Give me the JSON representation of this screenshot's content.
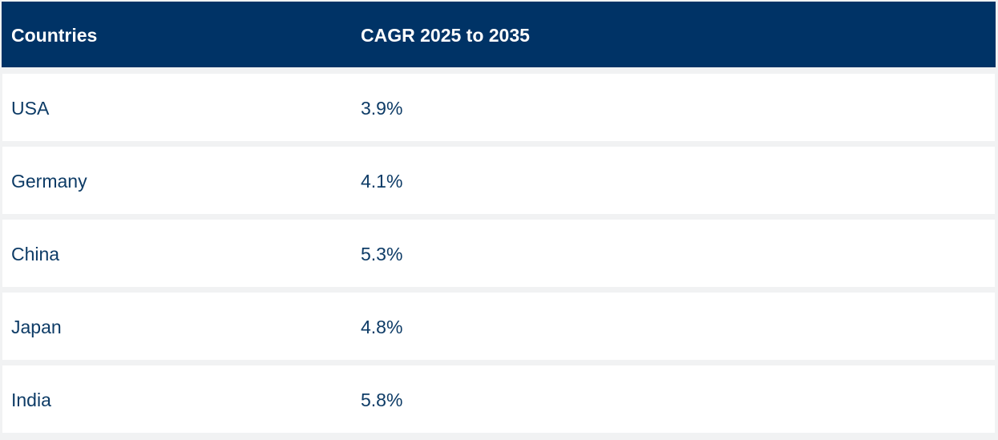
{
  "table": {
    "headers": [
      "Countries",
      "CAGR 2025 to 2035"
    ],
    "rows": [
      {
        "country": "USA",
        "cagr": "3.9%"
      },
      {
        "country": "Germany",
        "cagr": "4.1%"
      },
      {
        "country": "China",
        "cagr": "5.3%"
      },
      {
        "country": "Japan",
        "cagr": "4.8%"
      },
      {
        "country": "India",
        "cagr": "5.8%"
      }
    ]
  },
  "colors": {
    "header_background": "#003366",
    "header_text": "#ffffff",
    "body_text": "#0d3b66",
    "row_background": "#ffffff",
    "row_separator": "#f1f2f3"
  }
}
